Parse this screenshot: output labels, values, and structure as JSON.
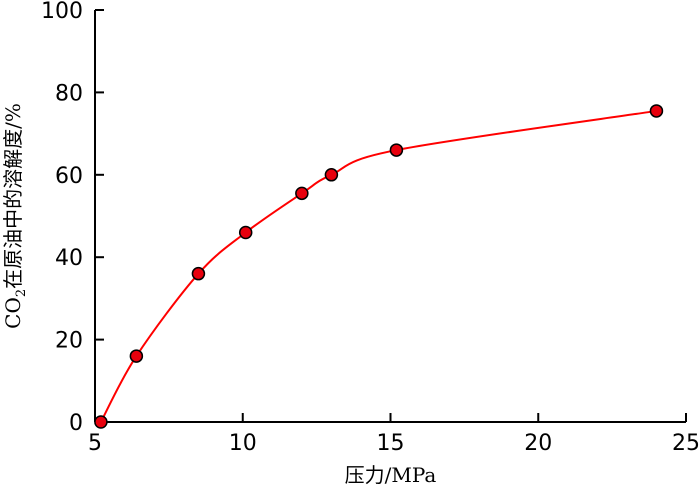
{
  "chart_data": {
    "type": "line",
    "title": "",
    "xlabel": "压力/MPa",
    "ylabel": "CO2在原油中的溶解度/%",
    "ylabel_parts": {
      "pre": "CO",
      "sub": "2",
      "post": "在原油中的溶解度/%"
    },
    "xlim": [
      5,
      25
    ],
    "ylim": [
      0,
      100
    ],
    "xticks": [
      5,
      10,
      15,
      20,
      25
    ],
    "yticks": [
      0,
      20,
      40,
      60,
      80,
      100
    ],
    "grid": false,
    "series": [
      {
        "x": [
          5.2,
          6.4,
          8.5,
          10.1,
          12.0,
          13.0,
          15.2,
          24.0
        ],
        "y": [
          0,
          16,
          36,
          46,
          55.5,
          60,
          66,
          75.5
        ]
      }
    ],
    "colors": {
      "line": "#ff0000",
      "marker_fill": "#e8000d",
      "marker_stroke": "#000000",
      "axis": "#000000"
    }
  }
}
